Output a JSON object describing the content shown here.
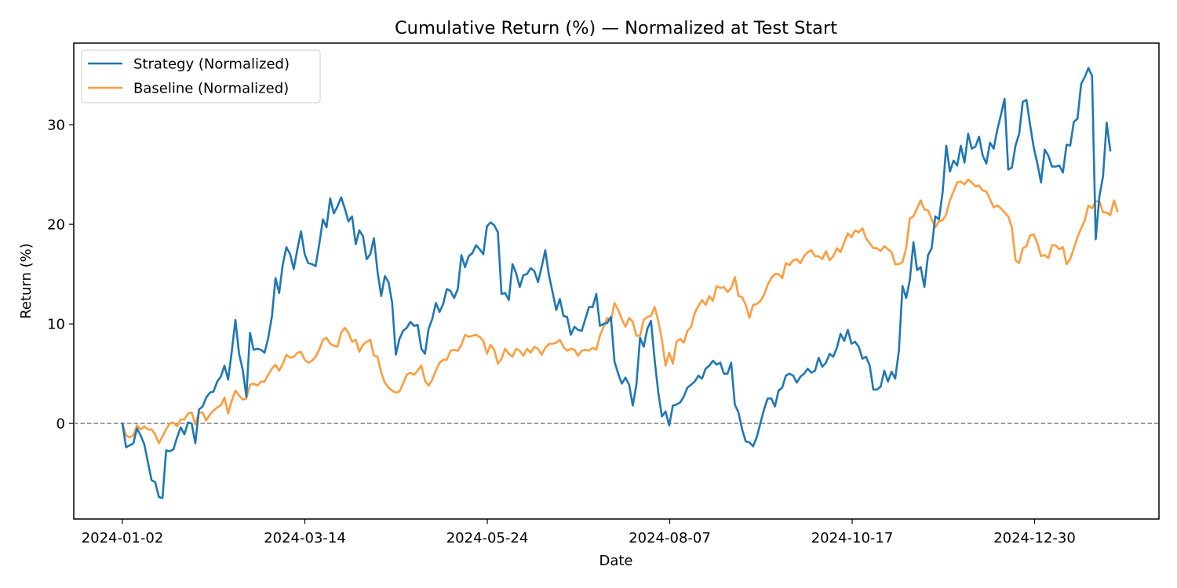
{
  "chart_data": {
    "type": "line",
    "title": "Cumulative Return (%) — Normalized at Test Start",
    "xlabel": "Date",
    "ylabel": "Return (%)",
    "x_tick_labels": [
      "2024-01-02",
      "2024-03-14",
      "2024-05-24",
      "2024-08-07",
      "2024-10-17",
      "2024-12-30"
    ],
    "y_ticks": [
      0,
      10,
      20,
      30
    ],
    "ylim": [
      -9.6,
      38.2
    ],
    "grid": false,
    "legend_position": "upper-left",
    "reference_line": {
      "y": 0,
      "style": "dashed",
      "color": "#808080"
    },
    "series": [
      {
        "name": "Strategy (Normalized)",
        "color": "#1f77b4",
        "values": [
          0.0,
          -2.4,
          -2.2,
          -2.0,
          -0.5,
          -1.2,
          -2.1,
          -3.9,
          -5.7,
          -5.9,
          -7.4,
          -7.5,
          -2.7,
          -2.8,
          -2.6,
          -1.4,
          -0.4,
          -1.1,
          0.1,
          0.0,
          -2.0,
          1.4,
          1.7,
          2.6,
          3.1,
          3.2,
          4.2,
          4.7,
          5.8,
          4.4,
          7.2,
          10.4,
          7.0,
          5.4,
          2.7,
          9.1,
          7.4,
          7.5,
          7.4,
          7.1,
          8.6,
          10.7,
          14.6,
          13.1,
          16.0,
          17.7,
          17.0,
          15.5,
          17.5,
          19.3,
          17.0,
          16.1,
          16.0,
          15.8,
          18.0,
          20.5,
          19.7,
          22.6,
          21.1,
          21.8,
          22.7,
          21.6,
          20.3,
          20.8,
          18.0,
          19.4,
          18.8,
          16.5,
          17.0,
          18.6,
          15.2,
          12.8,
          14.8,
          14.2,
          12.1,
          6.9,
          8.5,
          9.3,
          9.6,
          10.2,
          9.8,
          9.9,
          7.5,
          7.0,
          9.5,
          10.5,
          12.1,
          11.2,
          12.0,
          13.5,
          13.3,
          12.6,
          13.5,
          16.9,
          15.7,
          16.8,
          17.1,
          17.9,
          17.5,
          17.0,
          19.8,
          20.2,
          19.9,
          19.2,
          13.0,
          13.1,
          12.4,
          16.0,
          15.1,
          13.7,
          14.9,
          15.0,
          15.6,
          15.3,
          14.2,
          15.7,
          17.4,
          14.9,
          13.2,
          11.4,
          12.5,
          10.8,
          10.7,
          8.9,
          9.7,
          9.4,
          9.3,
          10.5,
          11.7,
          11.7,
          13.0,
          9.8,
          10.0,
          10.1,
          10.7,
          6.2,
          5.0,
          4.0,
          4.6,
          3.9,
          1.8,
          3.9,
          8.6,
          7.7,
          9.5,
          10.3,
          6.4,
          3.1,
          0.7,
          1.2,
          -0.2,
          1.8,
          1.9,
          2.1,
          2.7,
          3.6,
          3.9,
          4.2,
          4.8,
          4.5,
          5.5,
          5.8,
          6.3,
          5.9,
          6.1,
          5.0,
          5.0,
          6.1,
          1.9,
          1.1,
          -0.6,
          -1.8,
          -1.9,
          -2.3,
          -1.4,
          0.0,
          1.4,
          2.5,
          2.5,
          1.7,
          3.3,
          3.6,
          4.8,
          5.0,
          4.8,
          4.1,
          4.7,
          5.0,
          5.5,
          5.1,
          5.3,
          6.6,
          5.7,
          6.1,
          7.0,
          6.7,
          7.6,
          9.0,
          8.3,
          9.4,
          8.0,
          8.2,
          7.7,
          6.5,
          6.7,
          5.8,
          3.4,
          3.4,
          3.7,
          5.3,
          4.2,
          5.2,
          4.5,
          7.3,
          13.8,
          12.6,
          14.4,
          18.2,
          15.4,
          15.7,
          13.7,
          16.9,
          17.6,
          20.8,
          20.5,
          23.2,
          27.9,
          25.3,
          26.4,
          25.9,
          27.9,
          26.2,
          29.1,
          27.6,
          27.8,
          28.8,
          26.9,
          26.1,
          28.2,
          27.6,
          29.5,
          31.0,
          32.6,
          25.5,
          25.7,
          27.9,
          29.1,
          32.3,
          32.5,
          30.0,
          27.7,
          26.1,
          24.2,
          27.5,
          26.9,
          25.8,
          25.8,
          25.9,
          25.2,
          28.0,
          27.9,
          30.3,
          30.6,
          34.1,
          34.8,
          35.7,
          34.9,
          18.5,
          22.8,
          24.8,
          30.2,
          27.4
        ]
      },
      {
        "name": "Baseline (Normalized)",
        "color": "#ff9c3d",
        "values": [
          0.0,
          -1.2,
          -1.4,
          -1.2,
          -0.2,
          -0.6,
          -0.3,
          -0.6,
          -0.6,
          -1.1,
          -2.0,
          -1.3,
          -0.6,
          0.0,
          0.1,
          -0.3,
          0.4,
          0.4,
          1.0,
          1.1,
          -0.1,
          1.1,
          1.1,
          0.3,
          0.9,
          1.3,
          1.6,
          1.8,
          2.6,
          1.0,
          2.3,
          3.3,
          2.8,
          2.4,
          2.5,
          3.9,
          4.0,
          3.8,
          4.2,
          4.2,
          4.9,
          5.5,
          5.9,
          5.3,
          6.0,
          6.9,
          6.6,
          6.7,
          7.1,
          7.2,
          6.4,
          6.1,
          6.3,
          6.7,
          7.4,
          8.4,
          8.6,
          8.0,
          7.8,
          7.7,
          9.1,
          9.6,
          9.1,
          8.2,
          8.4,
          7.2,
          7.9,
          8.2,
          8.4,
          6.8,
          6.7,
          5.1,
          4.1,
          3.6,
          3.3,
          3.1,
          3.2,
          4.0,
          4.9,
          5.1,
          4.9,
          5.3,
          5.8,
          4.3,
          3.8,
          4.4,
          5.3,
          6.1,
          6.4,
          6.4,
          7.3,
          7.4,
          7.3,
          7.9,
          8.9,
          8.7,
          8.8,
          8.9,
          8.7,
          8.3,
          7.0,
          7.9,
          7.4,
          6.0,
          6.5,
          7.5,
          7.0,
          6.7,
          7.5,
          7.3,
          6.8,
          7.5,
          7.1,
          7.7,
          7.5,
          6.9,
          7.6,
          8.0,
          8.0,
          8.1,
          8.4,
          7.7,
          7.3,
          7.5,
          7.4,
          6.8,
          7.3,
          7.4,
          7.3,
          7.6,
          7.4,
          8.8,
          9.7,
          10.6,
          10.3,
          12.1,
          11.4,
          10.5,
          9.7,
          10.6,
          10.2,
          8.8,
          8.8,
          10.4,
          10.7,
          10.8,
          11.7,
          10.3,
          8.4,
          5.8,
          7.1,
          6.0,
          8.2,
          8.5,
          8.1,
          9.3,
          9.7,
          11.1,
          11.8,
          12.4,
          11.9,
          12.8,
          12.3,
          13.8,
          13.6,
          13.7,
          13.2,
          13.6,
          14.7,
          12.8,
          12.7,
          11.9,
          10.6,
          11.9,
          12.0,
          12.3,
          12.9,
          13.9,
          14.6,
          15.0,
          15.0,
          14.6,
          16.1,
          15.9,
          16.4,
          16.5,
          16.1,
          16.8,
          17.2,
          17.4,
          16.8,
          16.8,
          16.5,
          17.3,
          16.4,
          16.8,
          17.6,
          17.2,
          18.2,
          19.1,
          18.7,
          19.4,
          19.2,
          19.6,
          18.6,
          18.1,
          17.6,
          17.6,
          17.3,
          17.8,
          17.5,
          17.2,
          16.0,
          16.0,
          16.2,
          17.6,
          20.6,
          20.8,
          21.6,
          22.4,
          21.5,
          21.4,
          20.5,
          19.7,
          20.3,
          20.4,
          21.0,
          22.4,
          23.3,
          24.2,
          24.3,
          24.0,
          24.5,
          24.2,
          23.8,
          23.9,
          23.4,
          23.3,
          22.5,
          21.7,
          21.9,
          21.6,
          21.2,
          20.8,
          19.7,
          16.4,
          16.1,
          17.6,
          17.8,
          18.9,
          19.0,
          18.1,
          16.8,
          16.9,
          16.6,
          17.9,
          17.9,
          17.5,
          17.7,
          16.0,
          16.5,
          17.6,
          18.7,
          19.6,
          20.4,
          21.9,
          21.6,
          22.3,
          22.3,
          21.2,
          21.2,
          20.9,
          22.4,
          21.3
        ]
      }
    ]
  }
}
